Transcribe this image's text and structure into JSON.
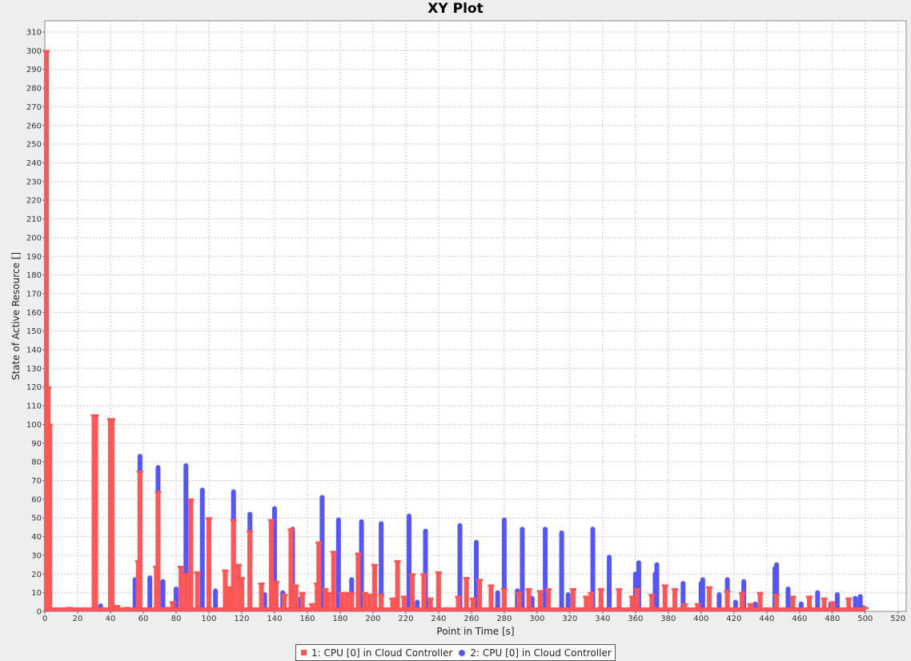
{
  "chart_data": {
    "type": "line",
    "title": "XY Plot",
    "xlabel": "Point in Time [s]",
    "ylabel": "State of Active Resource []",
    "xlim": [
      0,
      525
    ],
    "ylim": [
      0,
      316
    ],
    "x_ticks": [
      0,
      20,
      40,
      60,
      80,
      100,
      120,
      140,
      160,
      180,
      200,
      220,
      240,
      260,
      280,
      300,
      320,
      340,
      360,
      380,
      400,
      420,
      440,
      460,
      480,
      500,
      520
    ],
    "y_ticks": [
      0,
      10,
      20,
      30,
      40,
      50,
      60,
      70,
      80,
      90,
      100,
      110,
      120,
      130,
      140,
      150,
      160,
      170,
      180,
      190,
      200,
      210,
      220,
      230,
      240,
      250,
      260,
      270,
      280,
      290,
      300,
      310
    ],
    "grid": true,
    "legend_position": "bottom-center",
    "baseline": 1,
    "series": [
      {
        "name": "1: CPU [0] in Cloud Controller",
        "color": "#ff5555",
        "marker": "square",
        "spikes": [
          [
            1,
            300
          ],
          [
            2,
            120
          ],
          [
            3,
            100
          ],
          [
            15,
            2
          ],
          [
            30,
            105
          ],
          [
            31,
            105
          ],
          [
            40,
            103
          ],
          [
            41,
            103
          ],
          [
            44,
            3
          ],
          [
            50,
            2
          ],
          [
            57,
            27
          ],
          [
            58,
            75
          ],
          [
            68,
            24
          ],
          [
            69,
            64
          ],
          [
            75,
            2
          ],
          [
            78,
            5
          ],
          [
            83,
            24
          ],
          [
            86,
            20
          ],
          [
            89,
            60
          ],
          [
            93,
            21
          ],
          [
            100,
            50
          ],
          [
            110,
            22
          ],
          [
            113,
            13
          ],
          [
            115,
            49
          ],
          [
            118,
            25
          ],
          [
            120,
            18
          ],
          [
            125,
            43
          ],
          [
            132,
            15
          ],
          [
            138,
            49
          ],
          [
            141,
            16
          ],
          [
            146,
            9
          ],
          [
            150,
            44
          ],
          [
            153,
            14
          ],
          [
            157,
            10
          ],
          [
            163,
            4
          ],
          [
            166,
            15
          ],
          [
            167,
            37
          ],
          [
            171,
            12
          ],
          [
            173,
            10
          ],
          [
            176,
            32
          ],
          [
            181,
            10
          ],
          [
            184,
            10
          ],
          [
            187,
            10
          ],
          [
            191,
            31
          ],
          [
            195,
            10
          ],
          [
            198,
            9
          ],
          [
            201,
            25
          ],
          [
            205,
            9
          ],
          [
            212,
            7
          ],
          [
            215,
            27
          ],
          [
            219,
            8
          ],
          [
            224,
            20
          ],
          [
            231,
            20
          ],
          [
            235,
            7
          ],
          [
            240,
            21
          ],
          [
            252,
            8
          ],
          [
            257,
            18
          ],
          [
            261,
            7
          ],
          [
            265,
            17
          ],
          [
            272,
            14
          ],
          [
            280,
            12
          ],
          [
            289,
            10
          ],
          [
            295,
            12
          ],
          [
            302,
            11
          ],
          [
            307,
            12
          ],
          [
            322,
            12
          ],
          [
            330,
            8
          ],
          [
            333,
            10
          ],
          [
            339,
            12
          ],
          [
            350,
            12
          ],
          [
            358,
            8
          ],
          [
            361,
            12
          ],
          [
            370,
            9
          ],
          [
            378,
            14
          ],
          [
            384,
            12
          ],
          [
            390,
            4
          ],
          [
            398,
            4
          ],
          [
            405,
            13
          ],
          [
            416,
            11
          ],
          [
            425,
            10
          ],
          [
            430,
            4
          ],
          [
            436,
            10
          ],
          [
            446,
            9
          ],
          [
            456,
            8
          ],
          [
            466,
            8
          ],
          [
            475,
            7
          ],
          [
            480,
            5
          ],
          [
            490,
            7
          ],
          [
            500,
            2
          ]
        ]
      },
      {
        "name": "2: CPU [0] in Cloud Controller",
        "color": "#5555ff",
        "marker": "circle",
        "spikes": [
          [
            1,
            100
          ],
          [
            34,
            3
          ],
          [
            41,
            95
          ],
          [
            55,
            17
          ],
          [
            58,
            83
          ],
          [
            64,
            18
          ],
          [
            69,
            77
          ],
          [
            72,
            16
          ],
          [
            80,
            12
          ],
          [
            86,
            78
          ],
          [
            96,
            65
          ],
          [
            104,
            11
          ],
          [
            112,
            8
          ],
          [
            115,
            64
          ],
          [
            125,
            52
          ],
          [
            134,
            9
          ],
          [
            140,
            55
          ],
          [
            145,
            10
          ],
          [
            151,
            44
          ],
          [
            156,
            7
          ],
          [
            169,
            61
          ],
          [
            179,
            49
          ],
          [
            187,
            17
          ],
          [
            193,
            48
          ],
          [
            201,
            9
          ],
          [
            205,
            47
          ],
          [
            214,
            5
          ],
          [
            222,
            51
          ],
          [
            227,
            5
          ],
          [
            232,
            43
          ],
          [
            235,
            5
          ],
          [
            253,
            46
          ],
          [
            263,
            37
          ],
          [
            276,
            10
          ],
          [
            280,
            49
          ],
          [
            288,
            11
          ],
          [
            291,
            44
          ],
          [
            297,
            7
          ],
          [
            305,
            44
          ],
          [
            315,
            42
          ],
          [
            319,
            9
          ],
          [
            334,
            44
          ],
          [
            339,
            6
          ],
          [
            344,
            29
          ],
          [
            360,
            20
          ],
          [
            362,
            26
          ],
          [
            372,
            20
          ],
          [
            373,
            25
          ],
          [
            389,
            15
          ],
          [
            400,
            15
          ],
          [
            401,
            17
          ],
          [
            411,
            9
          ],
          [
            416,
            17
          ],
          [
            421,
            5
          ],
          [
            426,
            16
          ],
          [
            433,
            4
          ],
          [
            445,
            23
          ],
          [
            446,
            25
          ],
          [
            453,
            12
          ],
          [
            461,
            4
          ],
          [
            471,
            10
          ],
          [
            479,
            4
          ],
          [
            483,
            9
          ],
          [
            494,
            7
          ],
          [
            497,
            8
          ],
          [
            499,
            2
          ]
        ]
      }
    ]
  }
}
